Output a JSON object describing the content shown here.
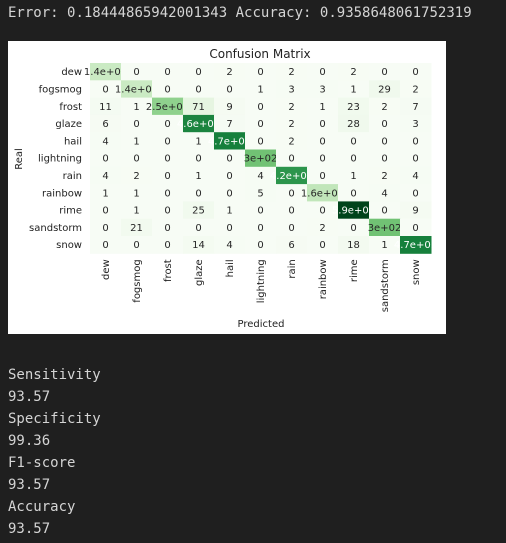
{
  "output": {
    "error_label": "Error:",
    "error_value": "0.18444865942001343",
    "accuracy_label": "Accuracy:",
    "accuracy_value": "0.9358648061752319"
  },
  "metrics": [
    {
      "label": "Sensitivity",
      "value": "93.57"
    },
    {
      "label": "Specificity",
      "value": "99.36"
    },
    {
      "label": "F1-score",
      "value": "93.57"
    },
    {
      "label": "Accuracy",
      "value": "93.57"
    }
  ],
  "colors": {
    "background": "#1f1f1f",
    "text": "#d4d4d4",
    "cmap_low": "#f7fcf5",
    "cmap_high": "#00441b"
  },
  "chart_data": {
    "type": "heatmap",
    "title": "Confusion Matrix",
    "xlabel": "Predicted",
    "ylabel": "Real",
    "colormap": "Greens",
    "vmax": 590,
    "labels": [
      "dew",
      "fogsmog",
      "frost",
      "glaze",
      "hail",
      "lightning",
      "rain",
      "rainbow",
      "rime",
      "sandstorm",
      "snow"
    ],
    "display": [
      [
        "1.4e+02",
        "0",
        "0",
        "0",
        "2",
        "0",
        "2",
        "0",
        "2",
        "0",
        "0"
      ],
      [
        "0",
        "1.4e+02",
        "0",
        "0",
        "0",
        "1",
        "3",
        "3",
        "1",
        "29",
        "2"
      ],
      [
        "11",
        "1",
        "2.5e+02",
        "71",
        "9",
        "0",
        "2",
        "1",
        "23",
        "2",
        "7"
      ],
      [
        "6",
        "0",
        "0",
        "4.6e+02",
        "7",
        "0",
        "2",
        "0",
        "28",
        "0",
        "3"
      ],
      [
        "4",
        "1",
        "0",
        "1",
        "4.7e+02",
        "0",
        "2",
        "0",
        "0",
        "0",
        "0"
      ],
      [
        "0",
        "0",
        "0",
        "0",
        "0",
        "3e+02",
        "0",
        "0",
        "0",
        "0",
        "0"
      ],
      [
        "4",
        "2",
        "0",
        "1",
        "0",
        "4",
        "4.2e+02",
        "0",
        "1",
        "2",
        "4"
      ],
      [
        "1",
        "1",
        "0",
        "0",
        "0",
        "5",
        "0",
        "1.6e+02",
        "0",
        "4",
        "0"
      ],
      [
        "0",
        "1",
        "0",
        "25",
        "1",
        "0",
        "0",
        "0",
        "5.9e+02",
        "0",
        "9"
      ],
      [
        "0",
        "21",
        "0",
        "0",
        "0",
        "0",
        "0",
        "2",
        "0",
        "3e+02",
        "0"
      ],
      [
        "0",
        "0",
        "0",
        "14",
        "4",
        "0",
        "6",
        "0",
        "18",
        "1",
        "4.7e+02"
      ]
    ],
    "values": [
      [
        140,
        0,
        0,
        0,
        2,
        0,
        2,
        0,
        2,
        0,
        0
      ],
      [
        0,
        140,
        0,
        0,
        0,
        1,
        3,
        3,
        1,
        29,
        2
      ],
      [
        11,
        1,
        250,
        71,
        9,
        0,
        2,
        1,
        23,
        2,
        7
      ],
      [
        6,
        0,
        0,
        460,
        7,
        0,
        2,
        0,
        28,
        0,
        3
      ],
      [
        4,
        1,
        0,
        1,
        470,
        0,
        2,
        0,
        0,
        0,
        0
      ],
      [
        0,
        0,
        0,
        0,
        0,
        300,
        0,
        0,
        0,
        0,
        0
      ],
      [
        4,
        2,
        0,
        1,
        0,
        4,
        420,
        0,
        1,
        2,
        4
      ],
      [
        1,
        1,
        0,
        0,
        0,
        5,
        0,
        160,
        0,
        4,
        0
      ],
      [
        0,
        1,
        0,
        25,
        1,
        0,
        0,
        0,
        590,
        0,
        9
      ],
      [
        0,
        21,
        0,
        0,
        0,
        0,
        0,
        2,
        0,
        300,
        0
      ],
      [
        0,
        0,
        0,
        14,
        4,
        0,
        6,
        0,
        18,
        1,
        470
      ]
    ]
  }
}
